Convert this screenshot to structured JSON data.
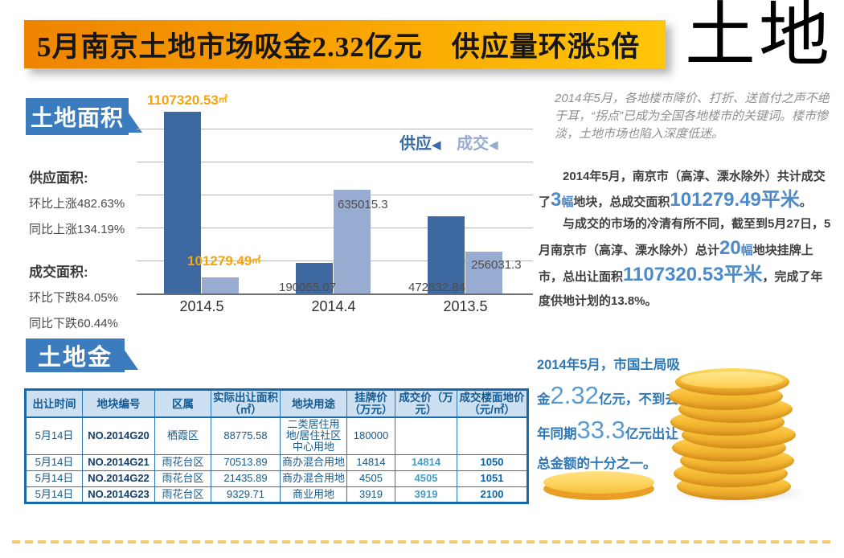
{
  "banner": {
    "title": "5月南京土地市场吸金2.32亿元　供应量环涨5倍",
    "corner_title": "土地"
  },
  "colors": {
    "banner_gradient_from": "#ee8400",
    "banner_gradient_to": "#ffc60a",
    "badge_blue": "#3b7cbf",
    "bar_supply": "#3e68a0",
    "bar_deal": "#98abd1",
    "orange_label": "#f7a30a",
    "highlight_blue": "#4e8ac7",
    "summary_blue": "#2f78b6",
    "coin_gold": "#f6bb33",
    "table_border": "#1a6aab"
  },
  "area_section": {
    "badge": "土地面积",
    "supply_label": "供应面积:",
    "supply_change_mom": "环比上涨482.63%",
    "supply_change_yoy": "同比上涨134.19%",
    "deal_label": "成交面积:",
    "deal_change_mom": "环比下跌84.05%",
    "deal_change_yoy": "同比下跌60.44%"
  },
  "chart_data": {
    "type": "bar",
    "categories": [
      "2014.5",
      "2014.4",
      "2013.5"
    ],
    "series": [
      {
        "name": "供应",
        "color": "#3e68a0",
        "values": [
          1107320.53,
          190055.07,
          472832.84
        ]
      },
      {
        "name": "成交",
        "color": "#98abd1",
        "values": [
          101279.49,
          635015.3,
          256031.3
        ]
      }
    ],
    "unit": "㎡",
    "ylim": [
      0,
      1150000
    ],
    "gridline_step": 200000,
    "grid": true,
    "legend_position": "top-right",
    "value_labels": {
      "supply_2014_5": "1107320.53",
      "deal_2014_5": "101279.49",
      "supply_2014_4": "190055.07",
      "deal_2014_4": "635015.3",
      "supply_2013_5": "472832.84",
      "deal_2013_5": "256031.3"
    },
    "legend_arrow": "◀"
  },
  "right_column": {
    "intro_italic": "2014年5月，各地楼市降价、打折、送首付之声不绝于耳，“拐点”已成为全国各地楼市的关键词。楼市惨淡，土地市场也陷入深度低迷。",
    "para_deal_segments": [
      {
        "t": "2014年5月，南京市（高淳、溧水除外）共计成交了"
      },
      {
        "t": "3",
        "s": "big"
      },
      {
        "t": "幅",
        "s": "blue"
      },
      {
        "t": "地块，总成交面积"
      },
      {
        "t": "101279.49平米",
        "s": "big"
      },
      {
        "t": "。"
      }
    ],
    "para_supply_segments": [
      {
        "t": "与成交的市场的冷清有所不同，截至到5月27日，5月南京市（高淳、溧水除外）总计"
      },
      {
        "t": "20",
        "s": "big"
      },
      {
        "t": "幅",
        "s": "blue"
      },
      {
        "t": "地块挂牌上市，总出让面积"
      },
      {
        "t": "1107320.53平米",
        "s": "big"
      },
      {
        "t": "，完成了年度供地计划的13.8%。"
      }
    ]
  },
  "money_section": {
    "badge": "土地金",
    "table": {
      "headers": [
        "出让时间",
        "地块编号",
        "区属",
        "实际出让面积（㎡）",
        "地块用途",
        "挂牌价（万元）",
        "成交价（万元）",
        "成交楼面地价（元/㎡）"
      ],
      "rows": [
        [
          "5月14日",
          "NO.2014G20",
          "栖霞区",
          "88775.58",
          "二类居住用地/居住社区中心用地",
          "180000",
          "",
          ""
        ],
        [
          "5月14日",
          "NO.2014G21",
          "雨花台区",
          "70513.89",
          "商办混合用地",
          "14814",
          "14814",
          "1050"
        ],
        [
          "5月14日",
          "NO.2014G22",
          "雨花台区",
          "21435.89",
          "商办混合用地",
          "4505",
          "4505",
          "1051"
        ],
        [
          "5月14日",
          "NO.2014G23",
          "雨花台区",
          "9329.71",
          "商业用地",
          "3919",
          "3919",
          "2100"
        ]
      ]
    },
    "summary_segments": [
      {
        "t": "2014年5月，市国土局吸金"
      },
      {
        "t": "2.32",
        "s": "huge"
      },
      {
        "t": "亿元，不到去年同期"
      },
      {
        "t": "33.3",
        "s": "huge"
      },
      {
        "t": "亿元出让总金额的十分之一。"
      }
    ]
  }
}
